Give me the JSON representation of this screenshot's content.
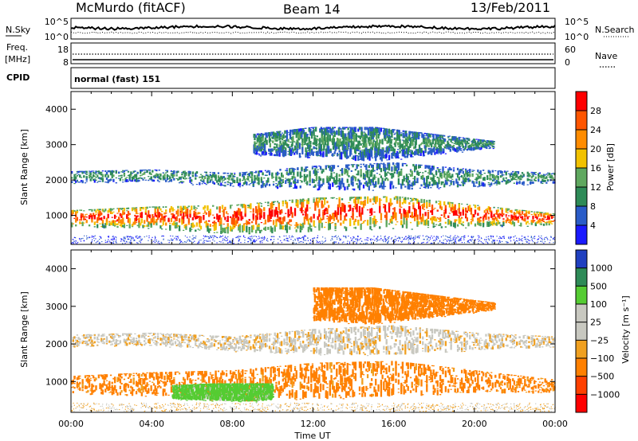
{
  "header": {
    "station": "McMurdo (fitACF)",
    "beam": "Beam 14",
    "date": "13/Feb/2011"
  },
  "status_panels": {
    "nsky_label": "N.Sky",
    "nsky_ticks": [
      "10^5",
      "10^0"
    ],
    "nsearch_label": "N.Search",
    "nsearch_ticks": [
      "10^5",
      "10^0"
    ],
    "freq_label": "Freq.",
    "freq_unit": "[MHz]",
    "freq_ticks": [
      "18",
      "8"
    ],
    "nave_label": "Nave",
    "nave_ticks": [
      "60",
      "0"
    ],
    "cpid_label": "CPID",
    "cpid_value": "normal (fast) 151"
  },
  "chart_data": [
    {
      "type": "heatmap",
      "title": "",
      "ylabel": "Slant Range [km]",
      "ylim": [
        180,
        4500
      ],
      "y_ticks": [
        "1000",
        "2000",
        "3000",
        "4000"
      ],
      "x_ticks": [
        "00:00",
        "04:00",
        "08:00",
        "12:00",
        "16:00",
        "20:00",
        "00:00"
      ],
      "colorbar_label": "Power [dB]",
      "colorbar_ticks": [
        "4",
        "8",
        "12",
        "16",
        "20",
        "24",
        "28"
      ],
      "colorbar_colors": [
        "#1a1aff",
        "#2a5cc8",
        "#2e8b57",
        "#5fa85f",
        "#f2c200",
        "#ff8c00",
        "#ff5500",
        "#ff0000"
      ],
      "bands": [
        {
          "name": "E-region band",
          "x": [
            0,
            4,
            8,
            12,
            16,
            20,
            24
          ],
          "low": [
            650,
            600,
            450,
            520,
            600,
            650,
            700
          ],
          "high": [
            1150,
            1250,
            1300,
            1500,
            1550,
            1300,
            1050
          ],
          "level": 24
        },
        {
          "name": "mid band",
          "x": [
            0,
            4,
            8,
            12,
            16,
            20,
            24
          ],
          "low": [
            1900,
            1950,
            1800,
            1700,
            1700,
            1800,
            1900
          ],
          "high": [
            2250,
            2300,
            2200,
            2400,
            2500,
            2300,
            2200
          ],
          "level": 8
        },
        {
          "name": "upper band",
          "x": [
            9,
            12,
            15,
            18,
            21
          ],
          "low": [
            2700,
            2600,
            2500,
            2700,
            2900
          ],
          "high": [
            3300,
            3500,
            3500,
            3300,
            3100
          ],
          "level": 8
        }
      ]
    },
    {
      "type": "heatmap",
      "title": "",
      "xlabel": "Time UT",
      "ylabel": "Slant Range [km]",
      "ylim": [
        180,
        4500
      ],
      "y_ticks": [
        "1000",
        "2000",
        "3000",
        "4000"
      ],
      "x_ticks": [
        "00:00",
        "04:00",
        "08:00",
        "12:00",
        "16:00",
        "20:00",
        "00:00"
      ],
      "colorbar_label": "Velocity [m s⁻¹]",
      "colorbar_ticks": [
        "1000",
        "500",
        "100",
        "25",
        "−25",
        "−100",
        "−500",
        "−1000"
      ],
      "colorbar_colors": [
        "#2040c0",
        "#2e8b57",
        "#55cc33",
        "#c8c8c0",
        "#c8c8c0",
        "#f0a020",
        "#ff8000",
        "#ff4000",
        "#ff0000"
      ],
      "bands": [
        {
          "name": "lower band",
          "x": [
            0,
            4,
            8,
            12,
            16,
            20,
            24
          ],
          "low": [
            650,
            600,
            450,
            520,
            600,
            650,
            700
          ],
          "high": [
            1150,
            1250,
            1300,
            1500,
            1550,
            1300,
            1050
          ],
          "velocity": -150
        },
        {
          "name": "green segment",
          "x": [
            5,
            7,
            9,
            10
          ],
          "low": [
            520,
            480,
            460,
            500
          ],
          "high": [
            900,
            950,
            950,
            950
          ],
          "velocity": 150
        },
        {
          "name": "mid band",
          "x": [
            0,
            4,
            8,
            12,
            16,
            20,
            24
          ],
          "low": [
            1900,
            1950,
            1800,
            1700,
            1700,
            1800,
            1900
          ],
          "high": [
            2250,
            2300,
            2200,
            2400,
            2500,
            2300,
            2200
          ],
          "velocity": 0
        },
        {
          "name": "upper band",
          "x": [
            12,
            15,
            18,
            21
          ],
          "low": [
            2600,
            2500,
            2700,
            2900
          ],
          "high": [
            3500,
            3500,
            3300,
            3100
          ],
          "velocity": -300
        }
      ]
    }
  ]
}
